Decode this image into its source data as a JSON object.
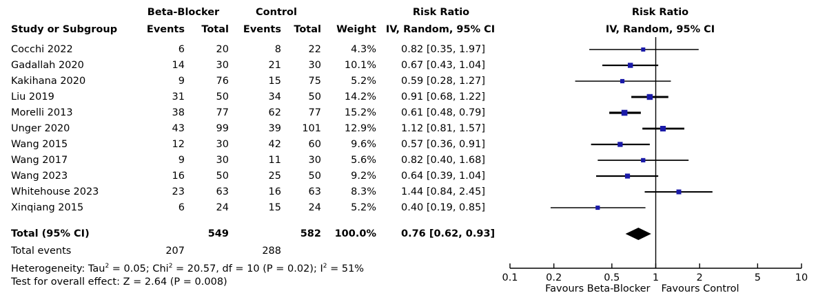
{
  "headers": {
    "group_bb": "Beta-Blocker",
    "group_ctrl": "Control",
    "rr_table": "Risk Ratio",
    "rr_table_method": "IV, Random, 95% CI",
    "rr_plot": "Risk Ratio",
    "rr_plot_method": "IV, Random, 95% CI",
    "study": "Study or Subgroup",
    "events": "Events",
    "total": "Total",
    "weight": "Weight"
  },
  "studies": [
    {
      "name": "Cocchi 2022",
      "bb_events": "6",
      "bb_total": "20",
      "ctrl_events": "8",
      "ctrl_total": "22",
      "weight": "4.3%",
      "ci": "0.82 [0.35, 1.97]"
    },
    {
      "name": "Gadallah 2020",
      "bb_events": "14",
      "bb_total": "30",
      "ctrl_events": "21",
      "ctrl_total": "30",
      "weight": "10.1%",
      "ci": "0.67 [0.43, 1.04]"
    },
    {
      "name": "Kakihana 2020",
      "bb_events": "9",
      "bb_total": "76",
      "ctrl_events": "15",
      "ctrl_total": "75",
      "weight": "5.2%",
      "ci": "0.59 [0.28, 1.27]"
    },
    {
      "name": "Liu 2019",
      "bb_events": "31",
      "bb_total": "50",
      "ctrl_events": "34",
      "ctrl_total": "50",
      "weight": "14.2%",
      "ci": "0.91 [0.68, 1.22]"
    },
    {
      "name": "Morelli 2013",
      "bb_events": "38",
      "bb_total": "77",
      "ctrl_events": "62",
      "ctrl_total": "77",
      "weight": "15.2%",
      "ci": "0.61 [0.48, 0.79]"
    },
    {
      "name": "Unger 2020",
      "bb_events": "43",
      "bb_total": "99",
      "ctrl_events": "39",
      "ctrl_total": "101",
      "weight": "12.9%",
      "ci": "1.12 [0.81, 1.57]"
    },
    {
      "name": "Wang 2015",
      "bb_events": "12",
      "bb_total": "30",
      "ctrl_events": "42",
      "ctrl_total": "60",
      "weight": "9.6%",
      "ci": "0.57 [0.36, 0.91]"
    },
    {
      "name": "Wang 2017",
      "bb_events": "9",
      "bb_total": "30",
      "ctrl_events": "11",
      "ctrl_total": "30",
      "weight": "5.6%",
      "ci": "0.82 [0.40, 1.68]"
    },
    {
      "name": "Wang 2023",
      "bb_events": "16",
      "bb_total": "50",
      "ctrl_events": "25",
      "ctrl_total": "50",
      "weight": "9.2%",
      "ci": "0.64 [0.39, 1.04]"
    },
    {
      "name": "Whitehouse 2023",
      "bb_events": "23",
      "bb_total": "63",
      "ctrl_events": "16",
      "ctrl_total": "63",
      "weight": "8.3%",
      "ci": "1.44 [0.84, 2.45]"
    },
    {
      "name": "Xinqiang 2015",
      "bb_events": "6",
      "bb_total": "24",
      "ctrl_events": "15",
      "ctrl_total": "24",
      "weight": "5.2%",
      "ci": "0.40 [0.19, 0.85]"
    }
  ],
  "total_row": {
    "label": "Total (95% CI)",
    "bb_total": "549",
    "ctrl_total": "582",
    "weight": "100.0%",
    "ci": "0.76 [0.62, 0.93]"
  },
  "total_events": {
    "label": "Total events",
    "bb": "207",
    "ctrl": "288"
  },
  "heterogeneity": {
    "prefix": "Heterogeneity: Tau",
    "tau_sup": "2",
    "mid": " = 0.05; Chi",
    "chi_sup": "2",
    "rest": " = 20.57, df = 10 (P = 0.02); I",
    "i_sup": "2",
    "end": " = 51%"
  },
  "overall_effect": "Test for overall effect: Z = 2.64 (P = 0.008)",
  "axis": {
    "ticks": [
      "0.1",
      "0.2",
      "0.5",
      "1",
      "2",
      "5",
      "10"
    ],
    "favours_left": "Favours Beta-Blocker",
    "favours_right": "Favours Control"
  },
  "colors": {
    "marker": "#1a1aa8",
    "line": "#000000"
  },
  "chart_data": {
    "type": "forest",
    "title": "Risk Ratio",
    "subtitle": "IV, Random, 95% CI",
    "xscale": "log",
    "xlim": [
      0.1,
      10
    ],
    "xticks": [
      0.1,
      0.2,
      0.5,
      1,
      2,
      5,
      10
    ],
    "xlabel_left": "Favours Beta-Blocker",
    "xlabel_right": "Favours Control",
    "studies": [
      {
        "name": "Cocchi 2022",
        "rr": 0.82,
        "lo": 0.35,
        "hi": 1.97,
        "weight": 4.3
      },
      {
        "name": "Gadallah 2020",
        "rr": 0.67,
        "lo": 0.43,
        "hi": 1.04,
        "weight": 10.1
      },
      {
        "name": "Kakihana 2020",
        "rr": 0.59,
        "lo": 0.28,
        "hi": 1.27,
        "weight": 5.2
      },
      {
        "name": "Liu 2019",
        "rr": 0.91,
        "lo": 0.68,
        "hi": 1.22,
        "weight": 14.2
      },
      {
        "name": "Morelli 2013",
        "rr": 0.61,
        "lo": 0.48,
        "hi": 0.79,
        "weight": 15.2
      },
      {
        "name": "Unger 2020",
        "rr": 1.12,
        "lo": 0.81,
        "hi": 1.57,
        "weight": 12.9
      },
      {
        "name": "Wang 2015",
        "rr": 0.57,
        "lo": 0.36,
        "hi": 0.91,
        "weight": 9.6
      },
      {
        "name": "Wang 2017",
        "rr": 0.82,
        "lo": 0.4,
        "hi": 1.68,
        "weight": 5.6
      },
      {
        "name": "Wang 2023",
        "rr": 0.64,
        "lo": 0.39,
        "hi": 1.04,
        "weight": 9.2
      },
      {
        "name": "Whitehouse 2023",
        "rr": 1.44,
        "lo": 0.84,
        "hi": 2.45,
        "weight": 8.3
      },
      {
        "name": "Xinqiang 2015",
        "rr": 0.4,
        "lo": 0.19,
        "hi": 0.85,
        "weight": 5.2
      }
    ],
    "pooled": {
      "rr": 0.76,
      "lo": 0.62,
      "hi": 0.93
    }
  }
}
